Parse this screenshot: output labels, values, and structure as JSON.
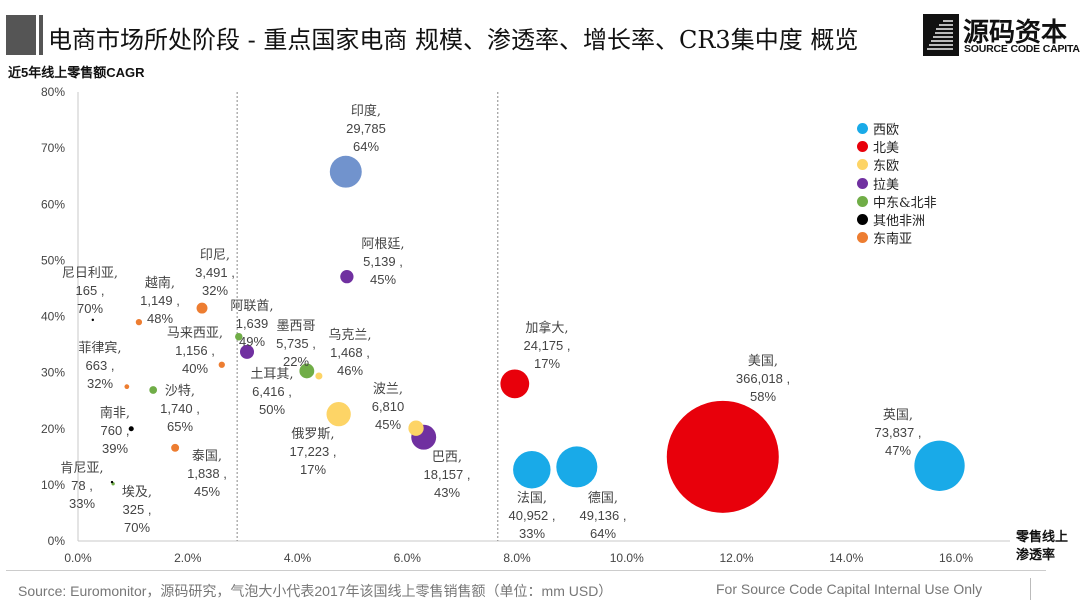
{
  "header": {
    "title": "电商市场所处阶段 - 重点国家电商 规模、渗透率、增长率、CR3集中度 概览",
    "logo_cn": "源码资本",
    "logo_en": "SOURCE CODE CAPITAL"
  },
  "footer": {
    "source": "Source: Euromonitor，源码研究，气泡大小代表2017年该国线上零售销售额（单位：mm USD）",
    "internal": "For Source Code Capital Internal Use Only"
  },
  "chart_data": {
    "type": "bubble",
    "title": "",
    "ylabel": "近5年线上零售额CAGR",
    "xlabel": "零售线上渗透率",
    "xlim": [
      0,
      16
    ],
    "ylim": [
      0,
      80
    ],
    "x_ticks": [
      "0.0%",
      "2.0%",
      "4.0%",
      "6.0%",
      "8.0%",
      "10.0%",
      "12.0%",
      "14.0%",
      "16.0%"
    ],
    "y_ticks": [
      "0%",
      "10%",
      "20%",
      "30%",
      "40%",
      "50%",
      "60%",
      "70%",
      "80%"
    ],
    "grid": false,
    "reference_lines_x": [
      2.9,
      7.65
    ],
    "legend_position": "top-right",
    "legend": [
      {
        "name": "西欧",
        "color": "#19aae8"
      },
      {
        "name": "北美",
        "color": "#e8000b"
      },
      {
        "name": "东欧",
        "color": "#fdd466"
      },
      {
        "name": "拉美",
        "color": "#7030a0"
      },
      {
        "name": "中东&北非",
        "color": "#70ad47"
      },
      {
        "name": "其他非洲",
        "color": "#000000"
      },
      {
        "name": "东南亚",
        "color": "#ed7d31"
      }
    ],
    "other_color": "#7193cd",
    "points": [
      {
        "name": "印度",
        "x": 4.88,
        "y": 65.8,
        "size": 29785,
        "region": "",
        "label": [
          "印度,",
          "29,785",
          "64%"
        ]
      },
      {
        "name": "阿根廷",
        "x": 4.9,
        "y": 47.1,
        "size": 5139,
        "region": "拉美",
        "label": [
          "阿根廷,",
          "5,139 ,",
          "45%"
        ]
      },
      {
        "name": "印尼",
        "x": 2.26,
        "y": 41.5,
        "size": 3491,
        "region": "东南亚",
        "label": [
          "印尼,",
          "3,491 ,",
          "32%"
        ]
      },
      {
        "name": "尼日利亚",
        "x": 0.27,
        "y": 39.4,
        "size": 165,
        "region": "其他非洲",
        "label": [
          "尼日利亚,",
          "165 ,",
          "70%"
        ]
      },
      {
        "name": "越南",
        "x": 1.11,
        "y": 39.0,
        "size": 1149,
        "region": "东南亚",
        "label": [
          "越南,",
          "1,149 ,",
          "48%"
        ]
      },
      {
        "name": "阿联酋",
        "x": 2.93,
        "y": 36.4,
        "size": 1639,
        "region": "中东&北非",
        "label": [
          "阿联酋,",
          "1,639",
          "49%"
        ]
      },
      {
        "name": "墨西哥",
        "x": 3.08,
        "y": 33.7,
        "size": 5735,
        "region": "拉美",
        "label": [
          "墨西哥",
          "5,735 ,",
          "22%"
        ]
      },
      {
        "name": "乌克兰",
        "x": 4.39,
        "y": 29.4,
        "size": 1468,
        "region": "东欧",
        "label": [
          "乌克兰,",
          "1,468 ,",
          "46%"
        ]
      },
      {
        "name": "马来西亚",
        "x": 2.62,
        "y": 31.4,
        "size": 1156,
        "region": "东南亚",
        "label": [
          "马来西亚,",
          "1,156 ,",
          "40%"
        ]
      },
      {
        "name": "菲律宾",
        "x": 0.89,
        "y": 27.5,
        "size": 663,
        "region": "东南亚",
        "label": [
          "菲律宾,",
          "663 ,",
          "32%"
        ]
      },
      {
        "name": "沙特",
        "x": 1.37,
        "y": 26.9,
        "size": 1740,
        "region": "中东&北非",
        "label": [
          "沙特,",
          "1,740 ,",
          "65%"
        ]
      },
      {
        "name": "土耳其",
        "x": 4.17,
        "y": 30.3,
        "size": 6416,
        "region": "中东&北非",
        "label": [
          "土耳其,",
          "6,416 ,",
          "50%"
        ]
      },
      {
        "name": "俄罗斯",
        "x": 4.75,
        "y": 22.6,
        "size": 17223,
        "region": "东欧",
        "label": [
          "俄罗斯,",
          "17,223 ,",
          "17%"
        ]
      },
      {
        "name": "波兰",
        "x": 6.16,
        "y": 20.1,
        "size": 6810,
        "region": "东欧",
        "label": [
          "波兰,",
          "6,810",
          "45%"
        ]
      },
      {
        "name": "巴西",
        "x": 6.3,
        "y": 18.5,
        "size": 18157,
        "region": "拉美",
        "label": [
          "巴西,",
          "18,157 ,",
          "43%"
        ]
      },
      {
        "name": "南非",
        "x": 0.97,
        "y": 20.0,
        "size": 760,
        "region": "其他非洲",
        "label": [
          "南非,",
          "760 ,",
          "39%"
        ]
      },
      {
        "name": "泰国",
        "x": 1.77,
        "y": 16.6,
        "size": 1838,
        "region": "东南亚",
        "label": [
          "泰国,",
          "1,838 ,",
          "45%"
        ]
      },
      {
        "name": "肯尼亚",
        "x": 0.62,
        "y": 10.5,
        "size": 78,
        "region": "其他非洲",
        "label": [
          "肯尼亚,",
          "78 ,",
          "33%"
        ]
      },
      {
        "name": "埃及",
        "x": 0.64,
        "y": 10.2,
        "size": 325,
        "region": "中东&北非",
        "label": [
          "埃及,",
          "325 ,",
          "70%"
        ]
      },
      {
        "name": "加拿大",
        "x": 7.96,
        "y": 28.0,
        "size": 24175,
        "region": "北美",
        "label": [
          "加拿大,",
          "24,175 ,",
          "17%"
        ]
      },
      {
        "name": "法国",
        "x": 8.27,
        "y": 12.7,
        "size": 40952,
        "region": "西欧",
        "label": [
          "法国,",
          "40,952 ,",
          "33%"
        ]
      },
      {
        "name": "德国",
        "x": 9.09,
        "y": 13.2,
        "size": 49136,
        "region": "西欧",
        "label": [
          "德国,",
          "49,136 ,",
          "64%"
        ]
      },
      {
        "name": "美国",
        "x": 11.75,
        "y": 15.0,
        "size": 366018,
        "region": "北美",
        "label": [
          "美国,",
          "366,018 ,",
          "58%"
        ]
      },
      {
        "name": "英国",
        "x": 15.7,
        "y": 13.4,
        "size": 73837,
        "region": "西欧",
        "label": [
          "英国,",
          "73,837 ,",
          "47%"
        ]
      }
    ]
  }
}
